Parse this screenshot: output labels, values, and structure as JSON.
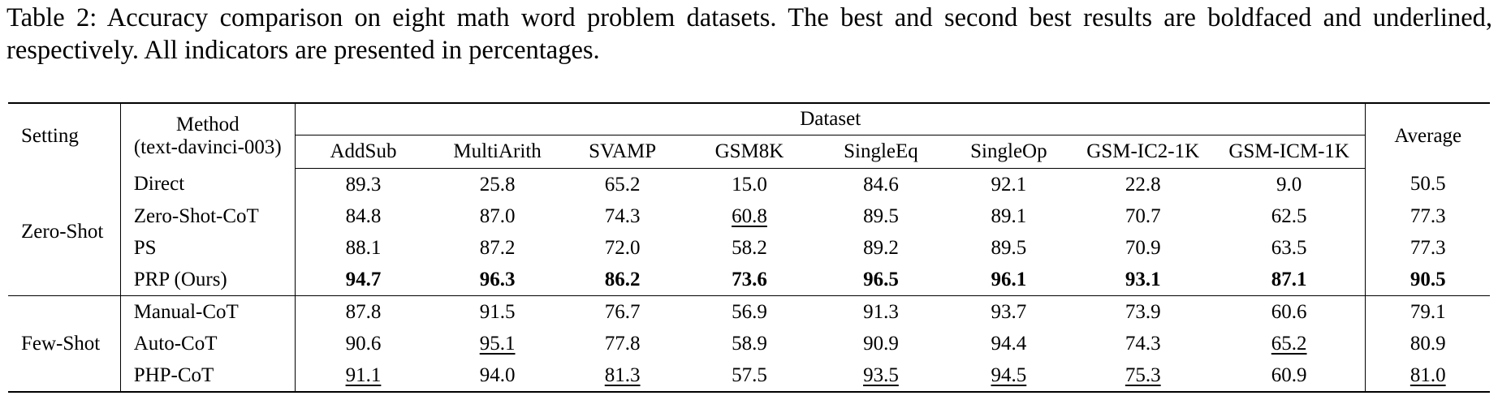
{
  "caption": "Table 2: Accuracy comparison on eight math word problem datasets. The best and second best results are boldfaced and underlined, respectively. All indicators are presented in percentages.",
  "header": {
    "setting": "Setting",
    "method_line1": "Method",
    "method_line2": "(text-davinci-003)",
    "dataset": "Dataset",
    "average": "Average",
    "columns": [
      "AddSub",
      "MultiArith",
      "SVAMP",
      "GSM8K",
      "SingleEq",
      "SingleOp",
      "GSM-IC2-1K",
      "GSM-ICM-1K"
    ]
  },
  "groups": [
    {
      "setting": "Zero-Shot",
      "rows": [
        {
          "method": "Direct",
          "values": [
            "89.3",
            "25.8",
            "65.2",
            "15.0",
            "84.6",
            "92.1",
            "22.8",
            "9.0"
          ],
          "average": "50.5",
          "bold": [],
          "underline": []
        },
        {
          "method": "Zero-Shot-CoT",
          "values": [
            "84.8",
            "87.0",
            "74.3",
            "60.8",
            "89.5",
            "89.1",
            "70.7",
            "62.5"
          ],
          "average": "77.3",
          "bold": [],
          "underline": [
            3
          ]
        },
        {
          "method": "PS",
          "values": [
            "88.1",
            "87.2",
            "72.0",
            "58.2",
            "89.2",
            "89.5",
            "70.9",
            "63.5"
          ],
          "average": "77.3",
          "bold": [],
          "underline": []
        },
        {
          "method": "PRP (Ours)",
          "values": [
            "94.7",
            "96.3",
            "86.2",
            "73.6",
            "96.5",
            "96.1",
            "93.1",
            "87.1"
          ],
          "average": "90.5",
          "bold": [
            0,
            1,
            2,
            3,
            4,
            5,
            6,
            7,
            8
          ],
          "underline": []
        }
      ]
    },
    {
      "setting": "Few-Shot",
      "rows": [
        {
          "method": "Manual-CoT",
          "values": [
            "87.8",
            "91.5",
            "76.7",
            "56.9",
            "91.3",
            "93.7",
            "73.9",
            "60.6"
          ],
          "average": "79.1",
          "bold": [],
          "underline": []
        },
        {
          "method": "Auto-CoT",
          "values": [
            "90.6",
            "95.1",
            "77.8",
            "58.9",
            "90.9",
            "94.4",
            "74.3",
            "65.2"
          ],
          "average": "80.9",
          "bold": [],
          "underline": [
            1,
            7
          ]
        },
        {
          "method": "PHP-CoT",
          "values": [
            "91.1",
            "94.0",
            "81.3",
            "57.5",
            "93.5",
            "94.5",
            "75.3",
            "60.9"
          ],
          "average": "81.0",
          "bold": [],
          "underline": [
            0,
            2,
            4,
            5,
            6,
            8
          ]
        }
      ]
    }
  ]
}
